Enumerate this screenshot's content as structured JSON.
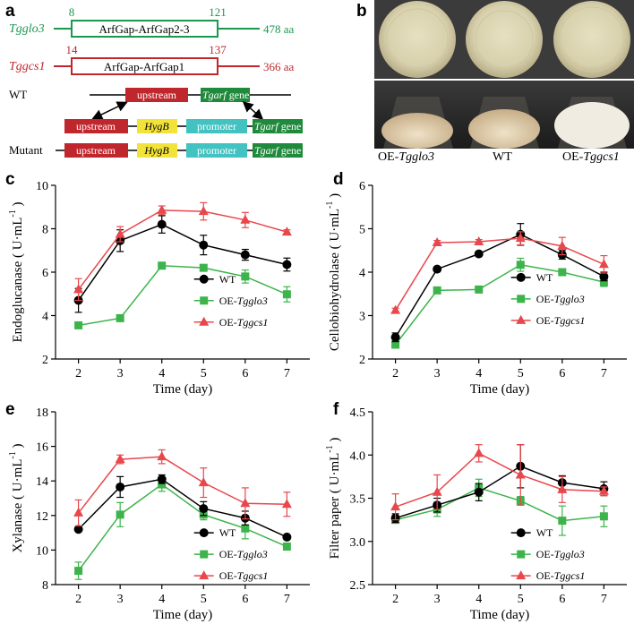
{
  "panels": {
    "a": "a",
    "b": "b",
    "c": "c",
    "d": "d",
    "e": "e",
    "f": "f"
  },
  "schematic": {
    "proteins": [
      {
        "name": "Tgglo3",
        "start": "8",
        "end": "121",
        "domain": "ArfGap-ArfGap2-3",
        "length": "478 aa",
        "color": "#1a9850"
      },
      {
        "name": "Tggcs1",
        "start": "14",
        "end": "137",
        "domain": "ArfGap-ArfGap1",
        "length": "366 aa",
        "color": "#c0272d"
      }
    ],
    "wt_label": "WT",
    "mutant_label": "Mutant",
    "blocks": {
      "upstream": "upstream",
      "gene_prefix": "Tgarf",
      "gene_suffix": " gene",
      "hygb": "HygB",
      "promoter": "promoter"
    },
    "colors": {
      "upstream": "#c0272d",
      "gene": "#1f8a3c",
      "hygb": "#f2e33a",
      "promoter": "#42c2c0"
    }
  },
  "photo": {
    "labels": [
      {
        "prefix": "OE-",
        "italic": "Tgglo3"
      },
      {
        "prefix": "WT",
        "italic": ""
      },
      {
        "prefix": "OE-",
        "italic": "Tggcs1"
      }
    ]
  },
  "legend": [
    {
      "prefix": "WT",
      "italic": "",
      "color": "#000000",
      "marker": "circle"
    },
    {
      "prefix": "OE-",
      "italic": "Tgglo3",
      "color": "#3cb44b",
      "marker": "square"
    },
    {
      "prefix": "OE-",
      "italic": "Tggcs1",
      "color": "#e8474c",
      "marker": "triangle"
    }
  ],
  "chart_data": [
    {
      "type": "line",
      "panel": "c",
      "xlabel": "Time (day)",
      "ylabel": "Endoglucanase ( U·mL",
      "ylabel_sup": "-1",
      "ylabel_close": ")",
      "x": [
        2,
        3,
        4,
        5,
        6,
        7
      ],
      "ylim": [
        2,
        10
      ],
      "yticks": [
        2,
        4,
        6,
        8,
        10
      ],
      "series": [
        {
          "name": "WT",
          "values": [
            4.7,
            7.45,
            8.2,
            7.25,
            6.8,
            6.35
          ],
          "errors": [
            0.55,
            0.5,
            0.4,
            0.45,
            0.25,
            0.3
          ]
        },
        {
          "name": "OE-Tgglo3",
          "values": [
            3.55,
            3.88,
            6.3,
            6.2,
            5.8,
            4.98
          ],
          "errors": [
            0.05,
            0.05,
            0.1,
            0.1,
            0.3,
            0.35
          ]
        },
        {
          "name": "OE-Tggcs1",
          "values": [
            5.2,
            7.75,
            8.85,
            8.8,
            8.4,
            7.85
          ],
          "errors": [
            0.5,
            0.35,
            0.2,
            0.4,
            0.35,
            0.1
          ]
        }
      ]
    },
    {
      "type": "line",
      "panel": "d",
      "xlabel": "Time (day)",
      "ylabel": "Cellobiohydrolase ( U·mL",
      "ylabel_sup": "-1",
      "ylabel_close": ")",
      "x": [
        2,
        3,
        4,
        5,
        6,
        7
      ],
      "ylim": [
        2,
        6
      ],
      "yticks": [
        2,
        3,
        4,
        5,
        6
      ],
      "series": [
        {
          "name": "WT",
          "values": [
            2.5,
            4.07,
            4.42,
            4.87,
            4.4,
            3.9
          ],
          "errors": [
            0.1,
            0.05,
            0.05,
            0.25,
            0.1,
            0.1
          ]
        },
        {
          "name": "OE-Tgglo3",
          "values": [
            2.33,
            3.58,
            3.6,
            4.17,
            4.0,
            3.77
          ],
          "errors": [
            0.05,
            0.05,
            0.05,
            0.15,
            0.05,
            0.1
          ]
        },
        {
          "name": "OE-Tggcs1",
          "values": [
            3.12,
            4.68,
            4.7,
            4.78,
            4.6,
            4.18
          ],
          "errors": [
            0.05,
            0.05,
            0.05,
            0.15,
            0.2,
            0.2
          ]
        }
      ]
    },
    {
      "type": "line",
      "panel": "e",
      "xlabel": "Time (day)",
      "ylabel": "Xylanase ( U·mL",
      "ylabel_sup": "-1",
      "ylabel_close": ")",
      "x": [
        2,
        3,
        4,
        5,
        6,
        7
      ],
      "ylim": [
        8,
        18
      ],
      "yticks": [
        8,
        10,
        12,
        14,
        16,
        18
      ],
      "series": [
        {
          "name": "WT",
          "values": [
            11.2,
            13.65,
            14.1,
            12.4,
            11.85,
            10.75
          ],
          "errors": [
            0.1,
            0.6,
            0.25,
            0.4,
            0.4,
            0.1
          ]
        },
        {
          "name": "OE-Tgglo3",
          "values": [
            8.8,
            12.05,
            13.8,
            12.05,
            11.25,
            10.2
          ],
          "errors": [
            0.5,
            0.7,
            0.4,
            0.3,
            0.6,
            0.2
          ]
        },
        {
          "name": "OE-Tggcs1",
          "values": [
            12.15,
            15.25,
            15.4,
            13.9,
            12.7,
            12.65
          ],
          "errors": [
            0.75,
            0.25,
            0.4,
            0.85,
            0.9,
            0.7
          ]
        }
      ]
    },
    {
      "type": "line",
      "panel": "f",
      "xlabel": "Time (day)",
      "ylabel": "Filter paper ( U·mL",
      "ylabel_sup": "-1",
      "ylabel_close": ")",
      "x": [
        2,
        3,
        4,
        5,
        6,
        7
      ],
      "ylim": [
        2.5,
        4.5
      ],
      "yticks": [
        2.5,
        3.0,
        3.5,
        4.0,
        4.5
      ],
      "series": [
        {
          "name": "WT",
          "values": [
            3.27,
            3.42,
            3.57,
            3.87,
            3.68,
            3.61
          ],
          "errors": [
            0.05,
            0.08,
            0.1,
            0.25,
            0.08,
            0.08
          ]
        },
        {
          "name": "OE-Tgglo3",
          "values": [
            3.25,
            3.37,
            3.62,
            3.47,
            3.24,
            3.29
          ],
          "errors": [
            0.04,
            0.08,
            0.1,
            0.05,
            0.17,
            0.12
          ]
        },
        {
          "name": "OE-Tggcs1",
          "values": [
            3.4,
            3.57,
            4.02,
            3.77,
            3.6,
            3.58
          ],
          "errors": [
            0.15,
            0.2,
            0.1,
            0.35,
            0.15,
            0.05
          ]
        }
      ]
    }
  ]
}
